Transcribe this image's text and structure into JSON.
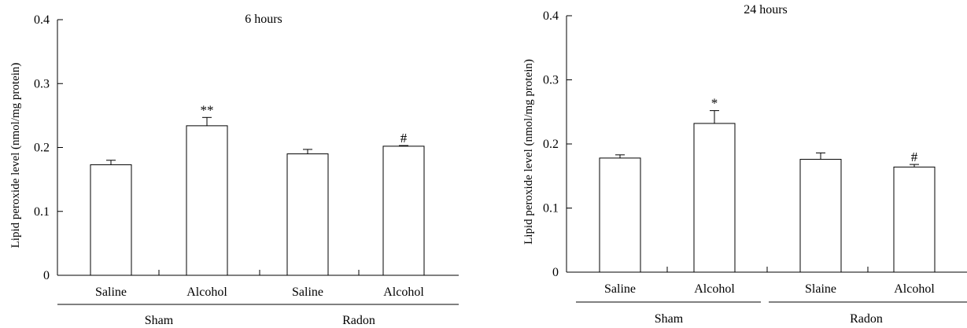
{
  "chart_data": [
    {
      "type": "bar",
      "title": "6 hours",
      "ylabel": "Lipid peroxide level (nmol/mg protein)",
      "xlabel": "",
      "ylim": [
        0,
        0.4
      ],
      "yticks": [
        0,
        0.1,
        0.2,
        0.3,
        0.4
      ],
      "ytick_labels": [
        "0",
        "0.1",
        "0.2",
        "0.3",
        "0.4"
      ],
      "categories": [
        "Saline",
        "Alcohol",
        "Saline",
        "Alcohol"
      ],
      "groups": [
        {
          "label": "Sham",
          "categories": [
            0,
            1
          ]
        },
        {
          "label": "Radon",
          "categories": [
            2,
            3
          ]
        }
      ],
      "values": [
        0.173,
        0.234,
        0.19,
        0.202
      ],
      "errors": [
        0.007,
        0.013,
        0.007,
        0.001
      ],
      "annotations": [
        "",
        "**",
        "",
        "#"
      ],
      "bar_fill": "#ffffff",
      "bar_stroke": "#000000"
    },
    {
      "type": "bar",
      "title": "24 hours",
      "ylabel": "Lipid peroxide level (nmol/mg protein)",
      "xlabel": "",
      "ylim": [
        0,
        0.4
      ],
      "yticks": [
        0,
        0.1,
        0.2,
        0.3,
        0.4
      ],
      "ytick_labels": [
        "0",
        "0.1",
        "0.2",
        "0.3",
        "0.4"
      ],
      "categories": [
        "Saline",
        "Alcohol",
        "Slaine",
        "Alcohol"
      ],
      "groups": [
        {
          "label": "Sham",
          "categories": [
            0,
            1
          ]
        },
        {
          "label": "Radon",
          "categories": [
            2,
            3
          ]
        }
      ],
      "values": [
        0.178,
        0.232,
        0.176,
        0.164
      ],
      "errors": [
        0.005,
        0.02,
        0.01,
        0.004
      ],
      "annotations": [
        "",
        "*",
        "",
        "#"
      ],
      "bar_fill": "#ffffff",
      "bar_stroke": "#000000"
    }
  ]
}
